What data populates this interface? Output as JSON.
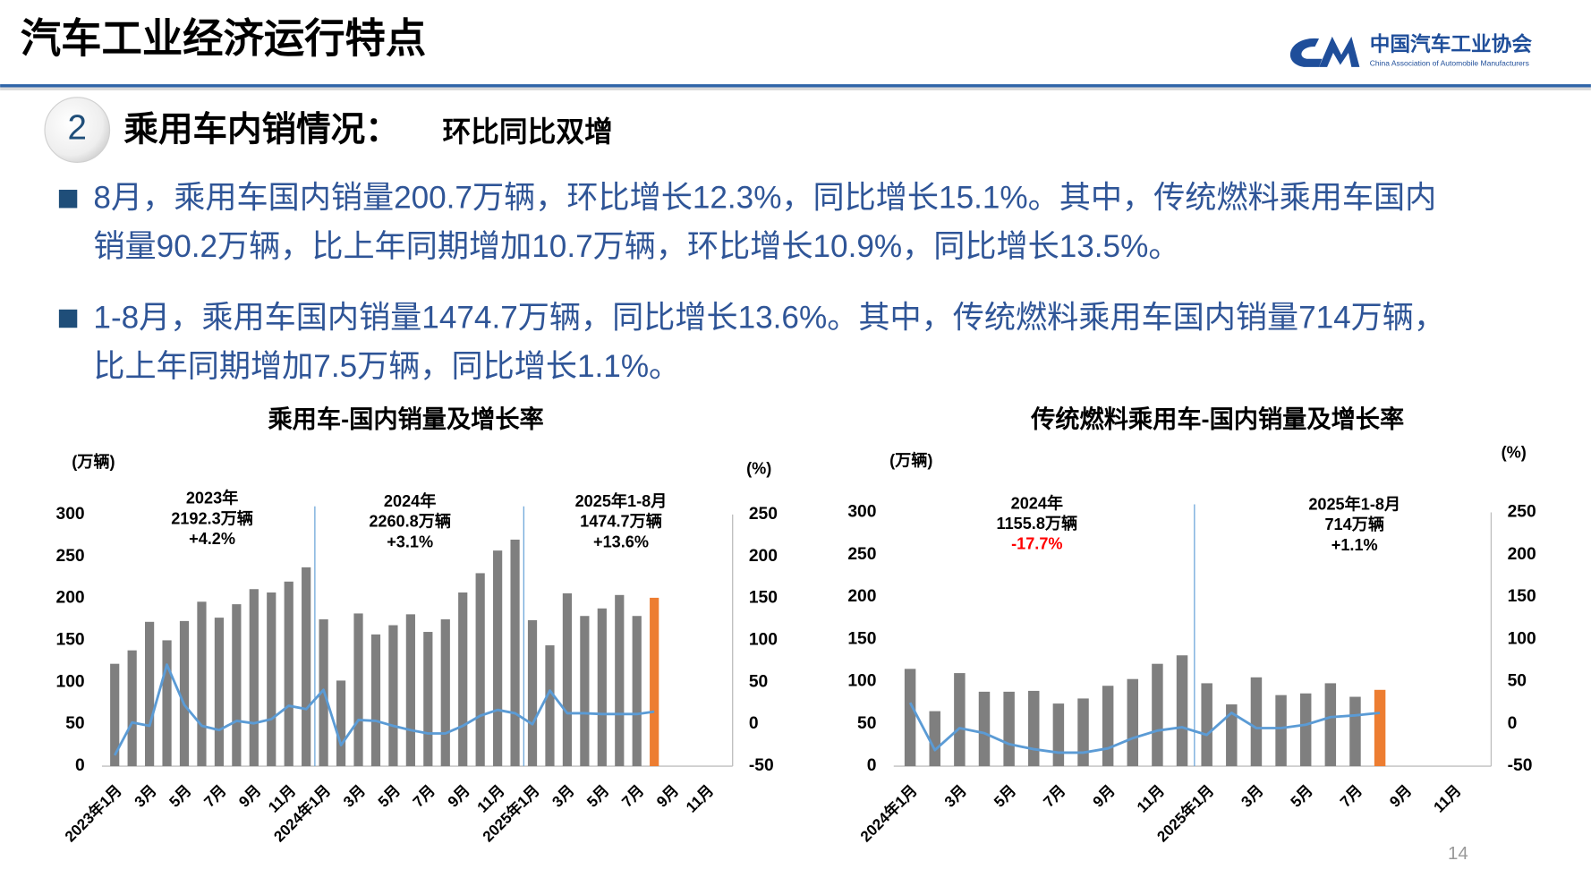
{
  "header": {
    "title": "汽车工业经济运行特点",
    "org_name": "中国汽车工业协会",
    "org_name_en": "China Association of Automobile Manufacturers"
  },
  "section": {
    "number": "2",
    "title": "乘用车内销情况：",
    "subtitle": "环比同比双增"
  },
  "bullets": [
    [
      "8月，乘用车国内销量200.7万辆，环比增长12.3%，同比增长15.1%。其中，传统燃料乘用车国内",
      "销量90.2万辆，比上年同期增加10.7万辆，环比增长10.9%，同比增长13.5%。"
    ],
    [
      "1-8月，乘用车国内销量1474.7万辆，同比增长13.6%。其中，传统燃料乘用车国内销量714万辆，",
      "比上年同期增加7.5万辆，同比增长1.1%。"
    ]
  ],
  "page_number": "14",
  "chart_data": [
    {
      "type": "bar_line",
      "title": "乘用车-国内销量及增长率",
      "y_label": "(万辆)",
      "y2_label": "(%)",
      "categories": [
        "2023年1月",
        null,
        "3月",
        null,
        "5月",
        null,
        "7月",
        null,
        "9月",
        null,
        "11月",
        null,
        "2024年1月",
        null,
        "3月",
        null,
        "5月",
        null,
        "7月",
        null,
        "9月",
        null,
        "11月",
        null,
        "2025年1月",
        null,
        "3月",
        null,
        "5月",
        null,
        "7月",
        null,
        "9月",
        null,
        "11月",
        null
      ],
      "values": [
        122,
        138,
        172,
        150,
        173,
        196,
        177,
        193,
        211,
        207,
        220,
        237,
        175,
        102,
        182,
        157,
        168,
        181,
        160,
        175,
        207,
        230,
        257,
        270,
        174,
        144,
        206,
        179,
        188,
        204,
        179,
        200.7,
        null,
        null,
        null,
        null
      ],
      "growth": [
        -37,
        2,
        -2,
        71,
        23,
        -2,
        -7,
        4,
        1,
        6,
        22,
        18,
        41,
        -25,
        5,
        4,
        -2,
        -7,
        -11,
        -11,
        -2,
        10,
        17,
        13,
        0,
        40,
        13,
        13,
        12,
        12,
        12,
        15,
        null,
        null,
        null,
        null
      ],
      "bar_color": "#7f7f7f",
      "highlight": {
        "index": 31,
        "color": "#ed7d31"
      },
      "line_color": "#5b9bd5",
      "ylim": [
        0,
        300
      ],
      "yticks": [
        0,
        50,
        100,
        150,
        200,
        250,
        300
      ],
      "y2lim": [
        -50,
        250
      ],
      "y2ticks": [
        -50,
        0,
        50,
        100,
        150,
        200,
        250
      ],
      "annotations": [
        {
          "lines": [
            "2023年",
            "2192.3万辆",
            "+4.2%"
          ],
          "colors": [
            "#000000",
            "#000000",
            "#000000"
          ]
        },
        {
          "lines": [
            "2024年",
            "2260.8万辆",
            "+3.1%"
          ],
          "colors": [
            "#000000",
            "#000000",
            "#000000"
          ]
        },
        {
          "lines": [
            "2025年1-8月",
            "1474.7万辆",
            "+13.6%"
          ],
          "colors": [
            "#000000",
            "#000000",
            "#000000"
          ]
        }
      ]
    },
    {
      "type": "bar_line",
      "title": "传统燃料乘用车-国内销量及增长率",
      "y_label": "(万辆)",
      "y2_label": "(%)",
      "categories": [
        "2024年1月",
        null,
        "3月",
        null,
        "5月",
        null,
        "7月",
        null,
        "9月",
        null,
        "11月",
        null,
        "2025年1月",
        null,
        "3月",
        null,
        "5月",
        null,
        "7月",
        null,
        "9月",
        null,
        "11月",
        null
      ],
      "values": [
        115,
        65,
        110,
        88,
        88,
        89,
        74,
        80,
        95,
        103,
        121,
        131,
        98,
        73,
        105,
        84,
        86,
        98,
        82,
        90.2,
        null,
        null,
        null,
        null
      ],
      "growth": [
        25,
        -31,
        -5,
        -11,
        -24,
        -30,
        -34,
        -34,
        -29,
        -17,
        -8,
        -4,
        -13,
        13,
        -5,
        -5,
        -1,
        8,
        10,
        13,
        null,
        null,
        null,
        null
      ],
      "bar_color": "#7f7f7f",
      "highlight": {
        "index": 19,
        "color": "#ed7d31"
      },
      "line_color": "#5b9bd5",
      "ylim": [
        0,
        300
      ],
      "yticks": [
        0,
        50,
        100,
        150,
        200,
        250,
        300
      ],
      "y2lim": [
        -50,
        250
      ],
      "y2ticks": [
        -50,
        0,
        50,
        100,
        150,
        200,
        250
      ],
      "annotations": [
        {
          "lines": [
            "2024年",
            "1155.8万辆",
            "-17.7%"
          ],
          "colors": [
            "#000000",
            "#000000",
            "#ff0000"
          ]
        },
        {
          "lines": [
            "2025年1-8月",
            "714万辆",
            "+1.1%"
          ],
          "colors": [
            "#000000",
            "#000000",
            "#000000"
          ]
        }
      ]
    }
  ]
}
